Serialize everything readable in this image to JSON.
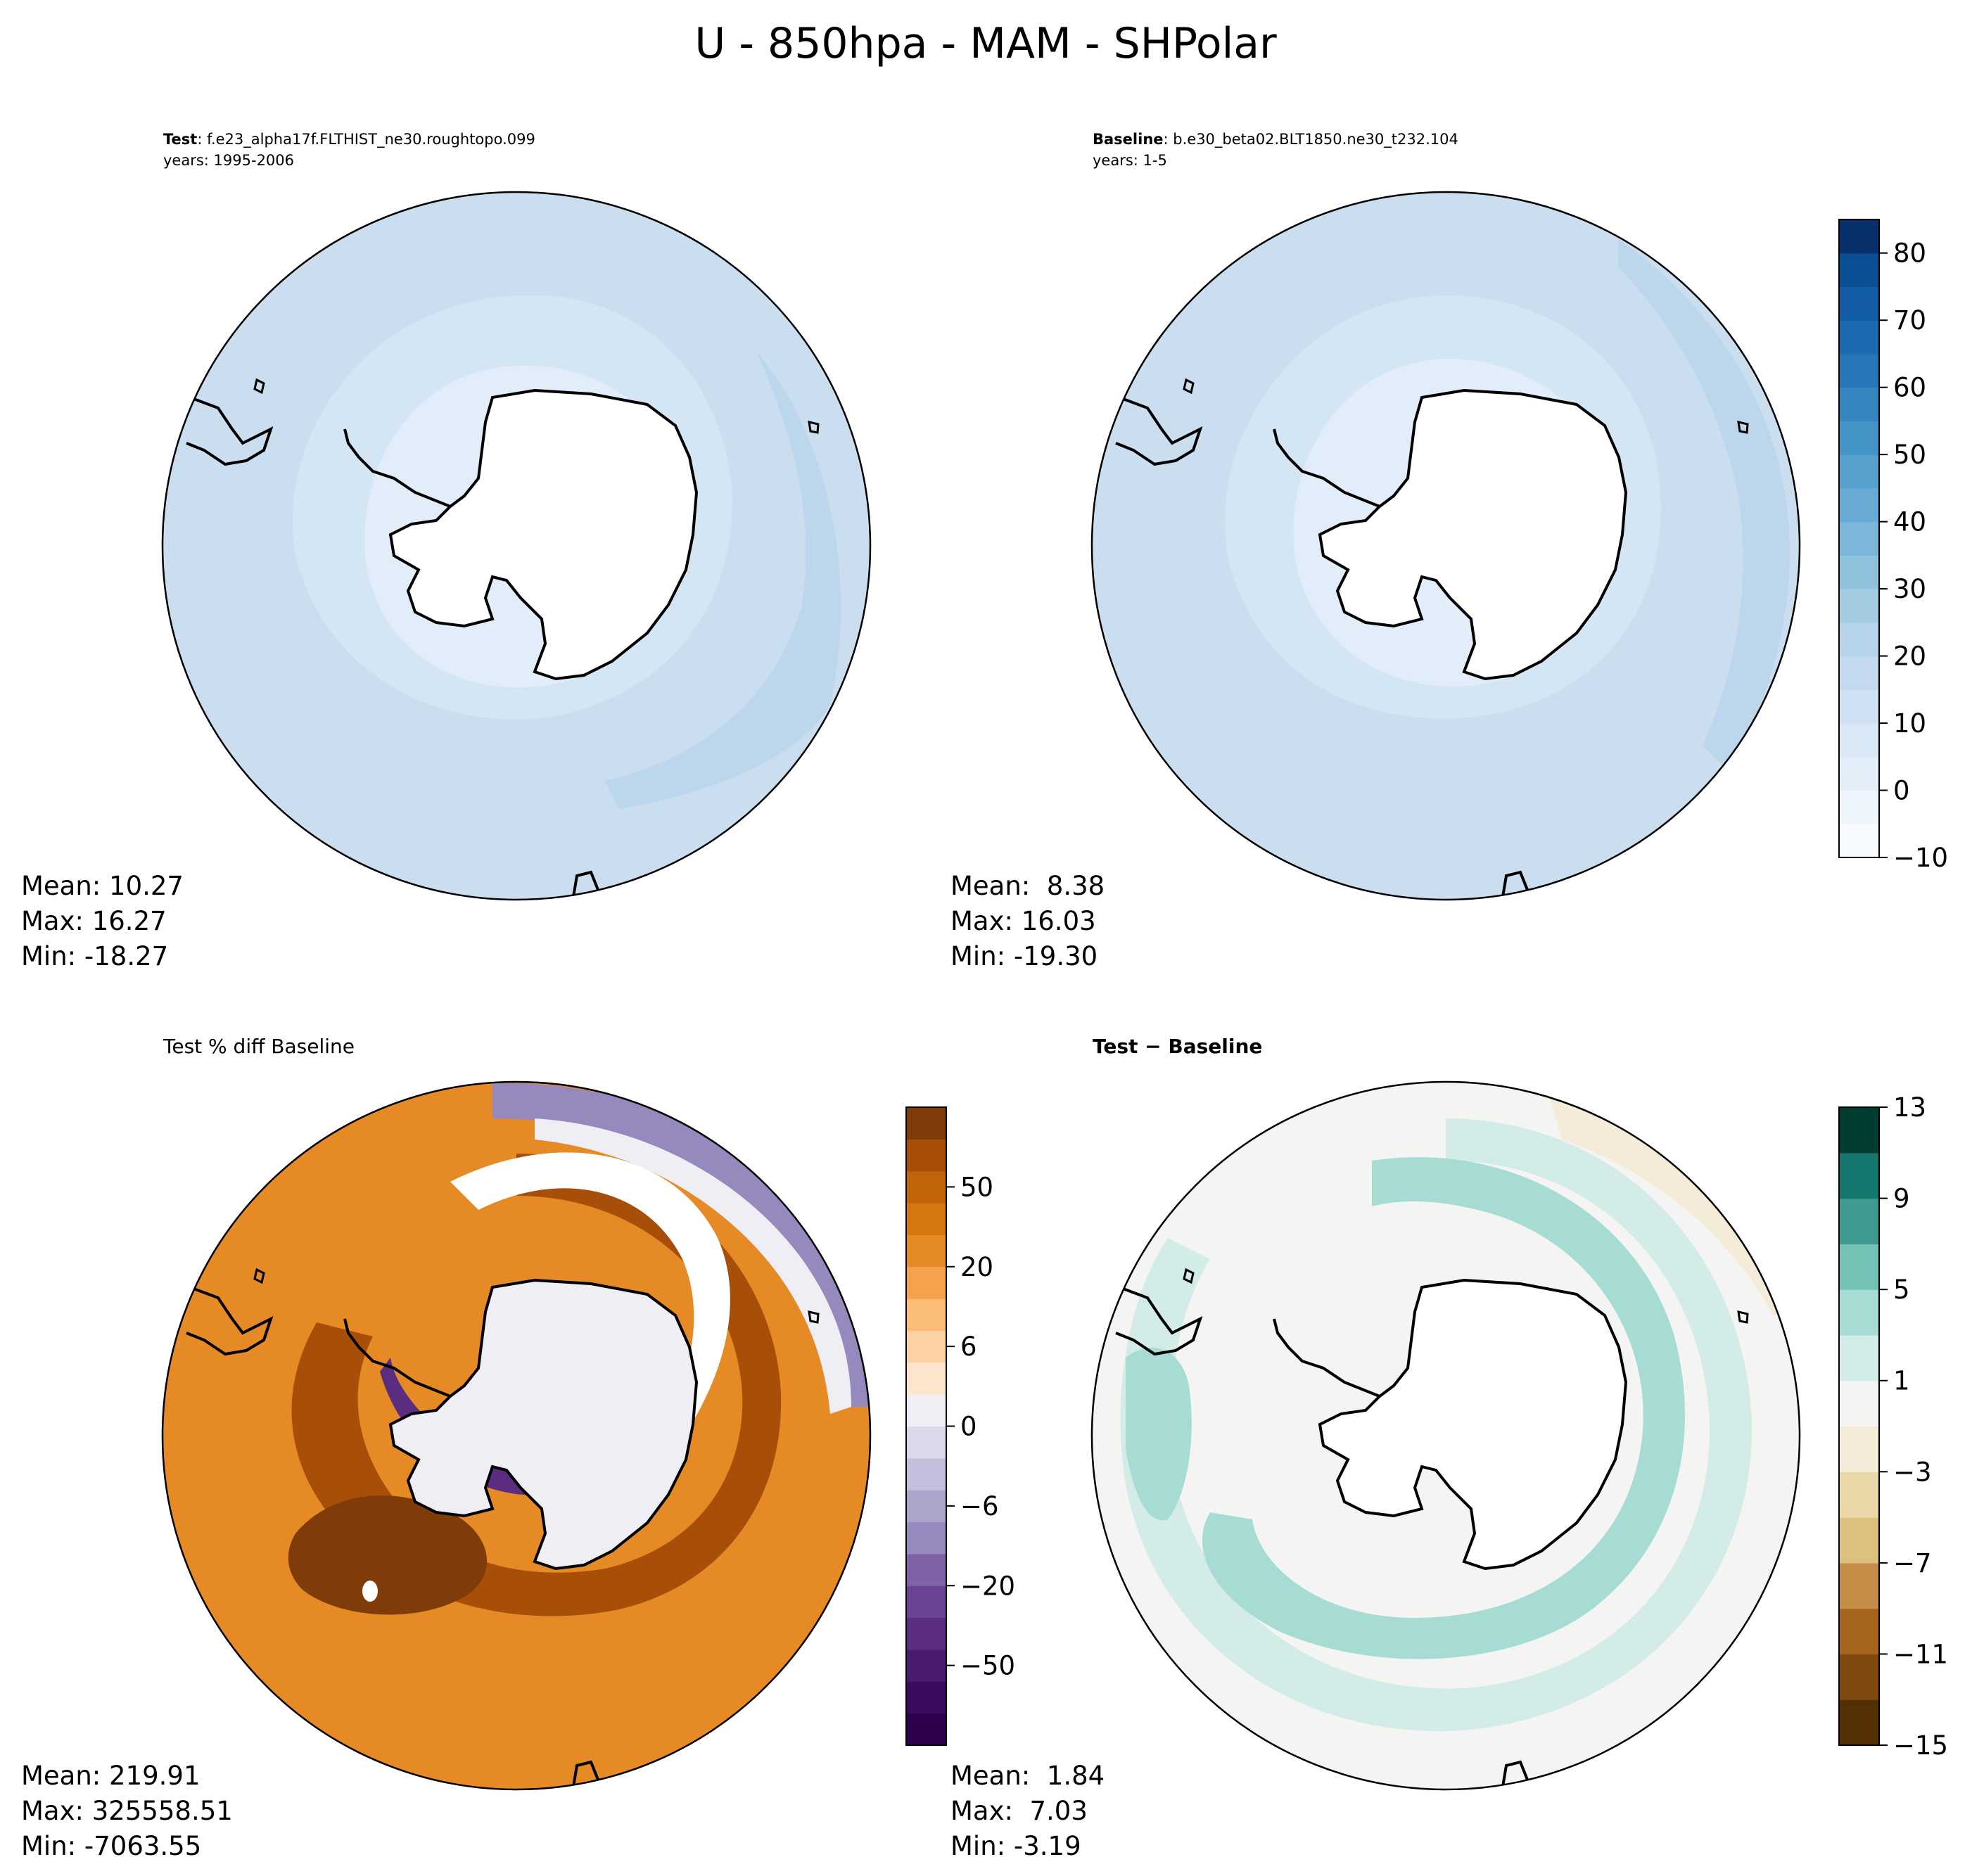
{
  "figure": {
    "title": "U - 850hpa - MAM - SHPolar"
  },
  "chart_data": [
    {
      "type": "heatmap",
      "projection": "south-polar-stereographic",
      "panel": "test",
      "label_bold": "Test",
      "label_rest": ": f.e23_alpha17f.FLTHIST_ne30.roughtopo.099",
      "years": "years: 1995-2006",
      "stats": [
        "Mean: 10.27",
        "Max: 16.27",
        "Min: -18.27"
      ],
      "mean": 10.27,
      "max": 16.27,
      "min": -18.27,
      "ring_levels": [
        0,
        5,
        10,
        15
      ],
      "colormap": "Blues",
      "colors": [
        "#f1f7fd",
        "#e1edf8",
        "#d4e5f4",
        "#cadef0",
        "#bcd7eb"
      ]
    },
    {
      "type": "heatmap",
      "projection": "south-polar-stereographic",
      "panel": "baseline",
      "label_bold": "Baseline",
      "label_rest": ": b.e30_beta02.BLT1850.ne30_t232.104",
      "years": "years: 1-5",
      "stats": [
        "Mean:  8.38",
        "Max: 16.03",
        "Min: -19.30"
      ],
      "mean": 8.38,
      "max": 16.03,
      "min": -19.3,
      "ring_levels": [
        0,
        5,
        10,
        15
      ],
      "colormap": "Blues",
      "colors": [
        "#f1f7fd",
        "#e1edf8",
        "#d4e5f4",
        "#cadef0",
        "#bcd7eb"
      ],
      "colorbar": {
        "ticks": [
          "80",
          "70",
          "60",
          "50",
          "40",
          "30",
          "20",
          "10",
          "0",
          "−10"
        ],
        "tick_values": [
          80,
          70,
          60,
          50,
          40,
          30,
          20,
          10,
          0,
          -10
        ],
        "range": [
          -10,
          85
        ],
        "levels": 19,
        "colors": [
          "#f7fbff",
          "#eef5fc",
          "#e3eef9",
          "#d9e8f5",
          "#cfe1f2",
          "#c3daee",
          "#b5d4e9",
          "#a3cce3",
          "#90c2de",
          "#7cb7da",
          "#68acd5",
          "#56a0ce",
          "#4493c7",
          "#3585bf",
          "#2777b8",
          "#1b69af",
          "#115ca5",
          "#0a4f94",
          "#08306b"
        ]
      }
    },
    {
      "type": "heatmap",
      "projection": "south-polar-stereographic",
      "panel": "percent-diff",
      "label": "Test % diff Baseline",
      "stats": [
        "Mean: 219.91",
        "Max: 325558.51",
        "Min: -7063.55"
      ],
      "mean": 219.91,
      "max": 325558.51,
      "min": -7063.55,
      "colormap": "PuOr_r",
      "colorbar": {
        "ticks": [
          "50",
          "20",
          "6",
          "0",
          "−6",
          "−20",
          "−50"
        ],
        "tick_values": [
          50,
          20,
          6,
          0,
          -6,
          -20,
          -50
        ],
        "levels": 20,
        "colors": [
          "#2d004b",
          "#3b0a5c",
          "#4a1a6e",
          "#5a2d81",
          "#6b4393",
          "#7e63a6",
          "#9589bd",
          "#ada4cc",
          "#c4bfdc",
          "#dcd9eb",
          "#eeeef4",
          "#fde6ce",
          "#fdd3a5",
          "#fbbd78",
          "#f4a24b",
          "#e68a25",
          "#d6760f",
          "#c1640a",
          "#a74f08",
          "#7f3b08"
        ]
      }
    },
    {
      "type": "heatmap",
      "projection": "south-polar-stereographic",
      "panel": "difference",
      "label": "Test − Baseline",
      "stats": [
        "Mean:  1.84",
        "Max:  7.03",
        "Min: -3.19"
      ],
      "mean": 1.84,
      "max": 7.03,
      "min": -3.19,
      "colormap": "BrBG",
      "colorbar": {
        "ticks": [
          "13",
          "9",
          "5",
          "1",
          "−3",
          "−7",
          "−11",
          "−15"
        ],
        "tick_values": [
          13,
          9,
          5,
          1,
          -3,
          -7,
          -11,
          -15
        ],
        "range": [
          -15,
          13
        ],
        "levels": 14,
        "colors": [
          "#543005",
          "#7d490d",
          "#a6661f",
          "#c58e48",
          "#dcc07e",
          "#ebd8a8",
          "#f4ecd9",
          "#f4f5f3",
          "#d3ece8",
          "#a6dcd3",
          "#74c2b6",
          "#3f9a8f",
          "#16776f",
          "#003c30"
        ]
      }
    }
  ]
}
